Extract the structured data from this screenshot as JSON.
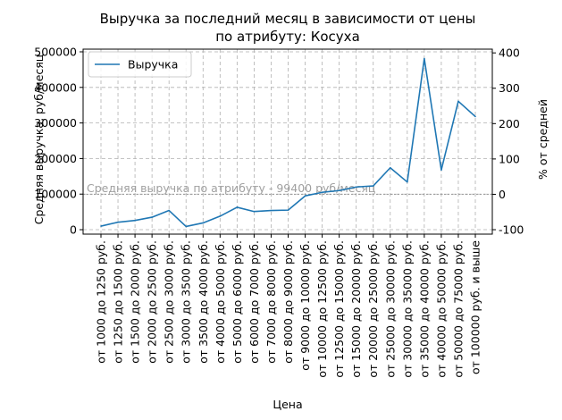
{
  "chart_data": {
    "type": "line",
    "title_line1": "Выручка за последний месяц в зависимости от цены",
    "title_line2": "по атрибуту: Косуха",
    "xlabel": "Цена",
    "ylabel": "Средняя выручка, руб/месяц",
    "ylabel_right": "% от средней",
    "categories": [
      "от 1000 до 1250 руб.",
      "от 1250 до 1500 руб.",
      "от 1500 до 2000 руб.",
      "от 2000 до 2500 руб.",
      "от 2500 до 3000 руб.",
      "от 3000 до 3500 руб.",
      "от 3500 до 4000 руб.",
      "от 4000 до 5000 руб.",
      "от 5000 до 6000 руб.",
      "от 6000 до 7000 руб.",
      "от 7000 до 8000 руб.",
      "от 8000 до 9000 руб.",
      "от 9000 до 10000 руб.",
      "от 10000 до 12500 руб.",
      "от 12500 до 15000 руб.",
      "от 15000 до 20000 руб.",
      "от 20000 до 25000 руб.",
      "от 25000 до 30000 руб.",
      "от 30000 до 35000 руб.",
      "от 35000 до 40000 руб.",
      "от 40000 до 50000 руб.",
      "от 50000 до 75000 руб.",
      "от 100000 руб. и выше"
    ],
    "series": [
      {
        "name": "Выручка",
        "color": "#1f77b4",
        "values": [
          10000,
          21000,
          26000,
          35000,
          54000,
          9000,
          19000,
          38000,
          63000,
          51000,
          54000,
          55000,
          95000,
          105000,
          110000,
          120000,
          123000,
          174000,
          134000,
          481000,
          168000,
          361000,
          318000
        ]
      }
    ],
    "average": {
      "value": 99400,
      "label": "Средняя выручка по атрибуту - 99400 руб/месяц"
    },
    "ylim": [
      -12500,
      507500
    ],
    "yticks": [
      0,
      100000,
      200000,
      300000,
      400000,
      500000
    ],
    "ylim_right_pct": [
      -112.58,
      410.56
    ],
    "yticks_right": [
      -100,
      0,
      100,
      200,
      300,
      400
    ],
    "legend_position": "upper left",
    "grid": true
  }
}
